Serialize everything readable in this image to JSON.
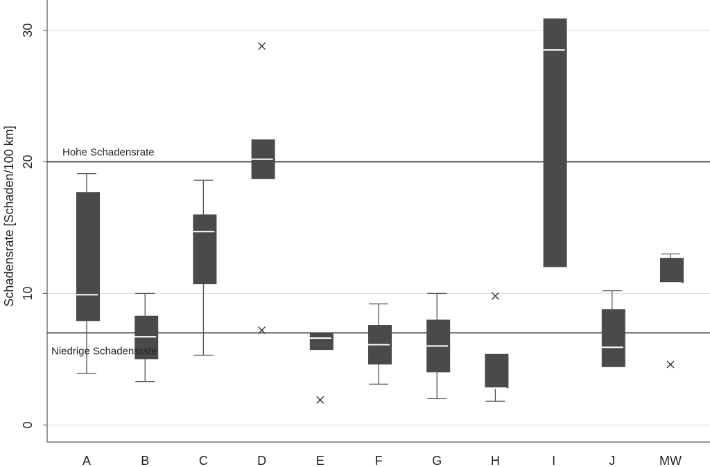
{
  "chart_data": {
    "type": "boxplot",
    "ylabel": "Schadensrate [Schaden/100 km]",
    "ylim": [
      -1.3,
      32.3
    ],
    "yticks": [
      0,
      10,
      20,
      30
    ],
    "grid": true,
    "colors": {
      "box": "#4a4a4a",
      "median": "#ffffff",
      "whisker": "#555555",
      "reference": "#333333",
      "grid": "#dcdcdc",
      "axis": "#555555"
    },
    "reference_lines": [
      {
        "label": "Hohe Schadensrate",
        "value": 20
      },
      {
        "label": "Niedrige Schadensrate",
        "value": 7
      }
    ],
    "categories": [
      "A",
      "B",
      "C",
      "D",
      "E",
      "F",
      "G",
      "H",
      "I",
      "J",
      "MW"
    ],
    "boxes": [
      {
        "category": "A",
        "whisker_low": 3.9,
        "q1": 7.9,
        "median": 9.9,
        "q3": 17.7,
        "whisker_high": 19.1,
        "outliers": []
      },
      {
        "category": "B",
        "whisker_low": 3.3,
        "q1": 5.0,
        "median": 6.7,
        "q3": 8.3,
        "whisker_high": 10.0,
        "outliers": []
      },
      {
        "category": "C",
        "whisker_low": 5.3,
        "q1": 10.7,
        "median": 14.7,
        "q3": 16.0,
        "whisker_high": 18.6,
        "outliers": []
      },
      {
        "category": "D",
        "whisker_low": null,
        "q1": 18.7,
        "median": 20.2,
        "q3": 21.7,
        "whisker_high": null,
        "outliers": [
          28.8,
          7.2
        ]
      },
      {
        "category": "E",
        "whisker_low": null,
        "q1": 5.7,
        "median": 6.6,
        "q3": 7.0,
        "whisker_high": null,
        "outliers": [
          1.9
        ]
      },
      {
        "category": "F",
        "whisker_low": 3.1,
        "q1": 4.6,
        "median": 6.1,
        "q3": 7.6,
        "whisker_high": 9.2,
        "outliers": []
      },
      {
        "category": "G",
        "whisker_low": 2.0,
        "q1": 4.0,
        "median": 6.0,
        "q3": 8.0,
        "whisker_high": 10.0,
        "outliers": []
      },
      {
        "category": "H",
        "whisker_low": 1.8,
        "q1": 2.8,
        "median": 2.8,
        "q3": 5.4,
        "whisker_high": null,
        "outliers": [
          9.8
        ]
      },
      {
        "category": "I",
        "whisker_low": null,
        "q1": 12.0,
        "median": 28.5,
        "q3": 30.9,
        "whisker_high": null,
        "outliers": []
      },
      {
        "category": "J",
        "whisker_low": null,
        "q1": 4.4,
        "median": 5.9,
        "q3": 8.8,
        "whisker_high": 10.2,
        "outliers": []
      },
      {
        "category": "MW",
        "whisker_low": null,
        "q1": 10.8,
        "median": 10.8,
        "q3": 12.7,
        "whisker_high": 13.0,
        "outliers": [
          4.6
        ]
      }
    ]
  }
}
